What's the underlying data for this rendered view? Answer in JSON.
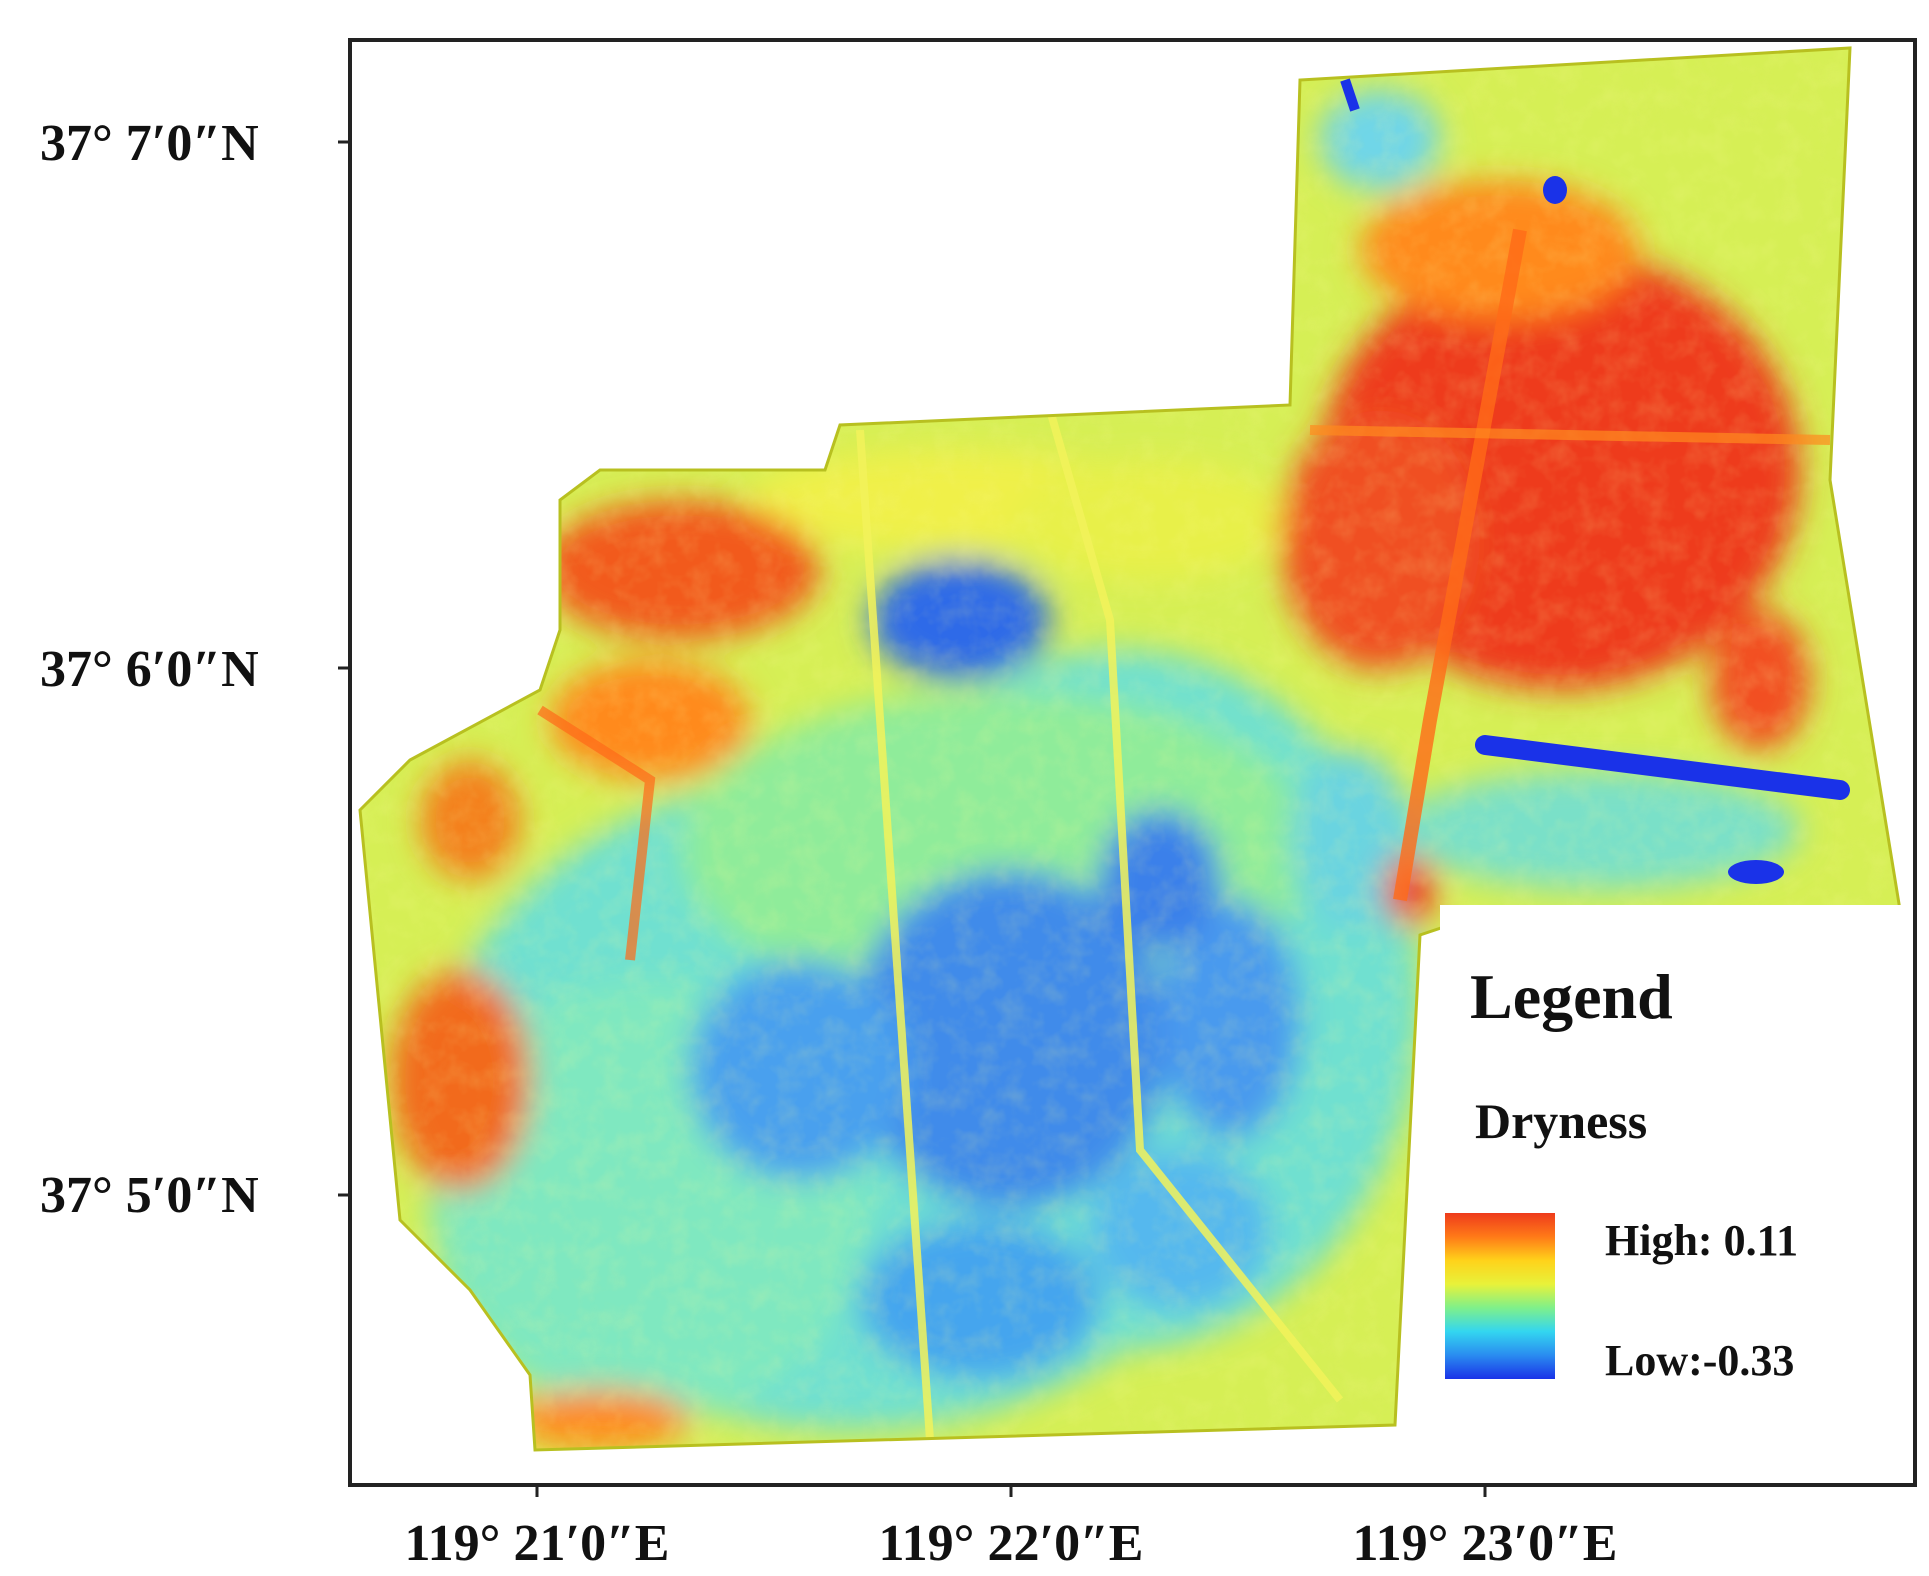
{
  "map": {
    "lat_labels": [
      "37° 7′0″N",
      "37° 6′0″N",
      "37° 5′0″N"
    ],
    "lon_labels": [
      "119° 21′0″E",
      "119° 22′0″E",
      "119° 23′0″E"
    ]
  },
  "legend": {
    "title": "Legend",
    "variable": "Dryness",
    "high_label": "High: 0.11",
    "low_label": "Low:-0.33",
    "high_value": 0.11,
    "low_value": -0.33,
    "ramp": [
      "#ee3b1c",
      "#ff7a18",
      "#ffd21a",
      "#e8f23a",
      "#7ff08a",
      "#33d6f0",
      "#2a8cf0",
      "#1a32e8"
    ]
  },
  "colors": {
    "frame": "#222222",
    "high": "#ee3b1c",
    "mid": "#e8f23a",
    "low": "#1a32e8"
  }
}
